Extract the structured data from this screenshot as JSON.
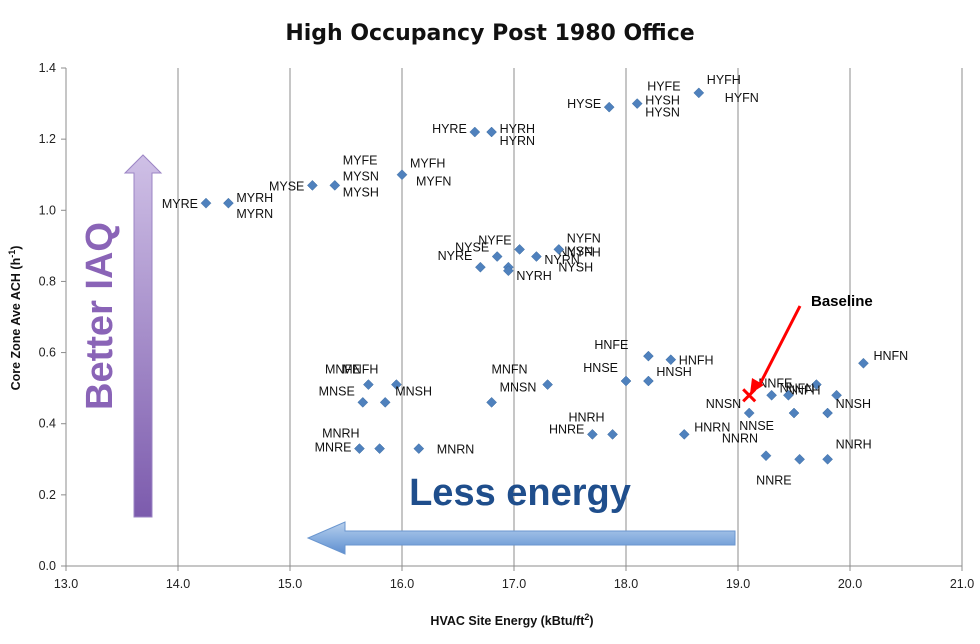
{
  "chart_data": {
    "type": "scatter",
    "title": "High Occupancy Post 1980 Office",
    "xlabel": "HVAC Site Energy (kBtu/ft",
    "xlabel_sup": "2",
    "xlabel_end": ")",
    "ylabel": "Core Zone Ave ACH (h",
    "ylabel_sup": "-1",
    "ylabel_end": ")",
    "xlim": [
      13.0,
      21.0
    ],
    "ylim": [
      0.0,
      1.4
    ],
    "x_ticks": [
      "13.0",
      "14.0",
      "15.0",
      "16.0",
      "17.0",
      "18.0",
      "19.0",
      "20.0",
      "21.0"
    ],
    "y_ticks": [
      "0.0",
      "0.2",
      "0.4",
      "0.6",
      "0.8",
      "1.0",
      "1.2",
      "1.4"
    ],
    "grid": "vertical",
    "marker_color": "#4f81bd",
    "points": [
      {
        "label": "MYRE",
        "x": 14.25,
        "y": 1.02,
        "lx": -2,
        "ly": 0
      },
      {
        "label": "MYRH",
        "x": 14.45,
        "y": 1.02,
        "lx": 0,
        "ly": -6
      },
      {
        "label": "MYRN",
        "x": 14.45,
        "y": 1.02,
        "lx": 0,
        "ly": 10
      },
      {
        "label": "MYSE",
        "x": 15.2,
        "y": 1.07,
        "lx": -2,
        "ly": 0
      },
      {
        "label": "MYFE",
        "x": 15.4,
        "y": 1.07,
        "lx": 0,
        "ly": -26
      },
      {
        "label": "MYSN",
        "x": 15.4,
        "y": 1.07,
        "lx": 0,
        "ly": -10
      },
      {
        "label": "MYSH",
        "x": 15.4,
        "y": 1.07,
        "lx": 0,
        "ly": 6
      },
      {
        "label": "MYFH",
        "x": 16.0,
        "y": 1.1,
        "lx": 0,
        "ly": -12
      },
      {
        "label": "MYFN",
        "x": 16.0,
        "y": 1.1,
        "lx": 6,
        "ly": 6
      },
      {
        "label": "HYRE",
        "x": 16.65,
        "y": 1.22,
        "lx": -2,
        "ly": -4
      },
      {
        "label": "HYRH",
        "x": 16.8,
        "y": 1.22,
        "lx": 0,
        "ly": -4
      },
      {
        "label": "HYRN",
        "x": 16.8,
        "y": 1.22,
        "lx": 0,
        "ly": 8
      },
      {
        "label": "HYSE",
        "x": 17.85,
        "y": 1.29,
        "lx": -2,
        "ly": -4
      },
      {
        "label": "HYFE",
        "x": 18.1,
        "y": 1.3,
        "lx": 2,
        "ly": -18
      },
      {
        "label": "HYSH",
        "x": 18.1,
        "y": 1.3,
        "lx": 0,
        "ly": -4
      },
      {
        "label": "HYSN",
        "x": 18.1,
        "y": 1.3,
        "lx": 0,
        "ly": 8
      },
      {
        "label": "HYFH",
        "x": 18.65,
        "y": 1.33,
        "lx": 0,
        "ly": -14
      },
      {
        "label": "HYFN",
        "x": 18.65,
        "y": 1.33,
        "lx": 18,
        "ly": 4
      },
      {
        "label": "NYRE",
        "x": 16.7,
        "y": 0.84,
        "lx": -2,
        "ly": -12
      },
      {
        "label": "NYSE",
        "x": 16.85,
        "y": 0.87,
        "lx": -2,
        "ly": -10
      },
      {
        "label": "NYFE",
        "x": 17.05,
        "y": 0.89,
        "lx": -2,
        "ly": -10
      },
      {
        "label": "NYRN",
        "x": 16.95,
        "y": 0.84,
        "lx": 28,
        "ly": -8
      },
      {
        "label": "NYRH",
        "x": 16.95,
        "y": 0.83,
        "lx": 0,
        "ly": 4
      },
      {
        "label": "NYSN",
        "x": 17.2,
        "y": 0.87,
        "lx": 14,
        "ly": -6
      },
      {
        "label": "NYSH",
        "x": 17.2,
        "y": 0.87,
        "lx": 14,
        "ly": 10
      },
      {
        "label": "NYFN",
        "x": 17.4,
        "y": 0.89,
        "lx": 0,
        "ly": -12
      },
      {
        "label": "NYFH",
        "x": 17.4,
        "y": 0.89,
        "lx": 0,
        "ly": 2
      },
      {
        "label": "MNFE",
        "x": 15.7,
        "y": 0.51,
        "lx": -2,
        "ly": -16
      },
      {
        "label": "MNFH",
        "x": 15.95,
        "y": 0.51,
        "lx": -12,
        "ly": -16
      },
      {
        "label": "MNSE",
        "x": 15.65,
        "y": 0.46,
        "lx": -2,
        "ly": -12
      },
      {
        "label": "MNSH",
        "x": 15.85,
        "y": 0.46,
        "lx": 2,
        "ly": -12
      },
      {
        "label": "MNSN",
        "x": 16.8,
        "y": 0.46,
        "lx": 0,
        "ly": -16
      },
      {
        "label": "MNFN",
        "x": 17.3,
        "y": 0.51,
        "lx": -14,
        "ly": -16
      },
      {
        "label": "MNRE",
        "x": 15.62,
        "y": 0.33,
        "lx": -2,
        "ly": -2
      },
      {
        "label": "MNRH",
        "x": 15.8,
        "y": 0.33,
        "lx": -14,
        "ly": -16
      },
      {
        "label": "MNRN",
        "x": 16.15,
        "y": 0.33,
        "lx": 10,
        "ly": 0
      },
      {
        "label": "HNFE",
        "x": 18.2,
        "y": 0.59,
        "lx": -14,
        "ly": -12
      },
      {
        "label": "HNSE",
        "x": 18.0,
        "y": 0.52,
        "lx": -2,
        "ly": -14
      },
      {
        "label": "HNSH",
        "x": 18.2,
        "y": 0.52,
        "lx": 0,
        "ly": -10
      },
      {
        "label": "HNFH",
        "x": 18.4,
        "y": 0.58,
        "lx": 0,
        "ly": 0
      },
      {
        "label": "HNRE",
        "x": 17.7,
        "y": 0.37,
        "lx": -2,
        "ly": -6
      },
      {
        "label": "HNRH",
        "x": 17.88,
        "y": 0.37,
        "lx": -2,
        "ly": -18
      },
      {
        "label": "HNRN",
        "x": 18.52,
        "y": 0.37,
        "lx": 2,
        "ly": -8
      },
      {
        "label": "HNFN",
        "x": 20.12,
        "y": 0.57,
        "lx": 2,
        "ly": -8
      },
      {
        "label": "NNFE",
        "x": 19.7,
        "y": 0.51,
        "lx": -18,
        "ly": -2
      },
      {
        "label": "NNFH",
        "x": 19.88,
        "y": 0.48,
        "lx": -10,
        "ly": -6
      },
      {
        "label": "NNFN",
        "x": 19.3,
        "y": 0.48,
        "lx": 0,
        "ly": -8
      },
      {
        "label": "NNSN",
        "x": 19.1,
        "y": 0.43,
        "lx": -2,
        "ly": -10
      },
      {
        "label": "NNSH",
        "x": 19.8,
        "y": 0.43,
        "lx": 0,
        "ly": -10
      },
      {
        "label": "NNSE",
        "x": 19.5,
        "y": 0.43,
        "lx": -14,
        "ly": 12
      },
      {
        "label": "NNRN",
        "x": 19.25,
        "y": 0.31,
        "lx": -2,
        "ly": -18
      },
      {
        "label": "NNRH",
        "x": 19.8,
        "y": 0.3,
        "lx": 0,
        "ly": -16
      },
      {
        "label": "NNRE",
        "x": 19.55,
        "y": 0.3,
        "lx": -2,
        "ly": 20
      }
    ],
    "extra_markers": [
      {
        "x": 19.45,
        "y": 0.48
      },
      {
        "x": 19.8,
        "y": 0.43
      }
    ],
    "baseline": {
      "label": "Baseline",
      "x": 19.1,
      "y": 0.48
    }
  },
  "annotations": {
    "energy_text": "Less energy",
    "iaq_text": "Better IAQ",
    "baseline_label": "Baseline"
  }
}
